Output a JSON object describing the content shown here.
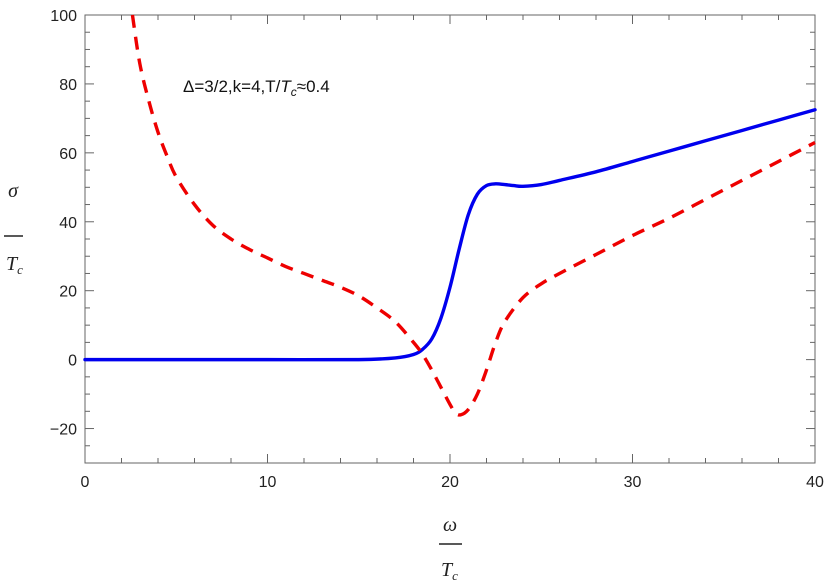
{
  "chart_data": {
    "type": "line",
    "title": "",
    "annotation": {
      "prefix": "Δ=3/2,k=4,T/",
      "sym": "T",
      "sub": "c",
      "suffix": "≈0.4"
    },
    "xlabel": {
      "top": "ω",
      "bottom_sym": "T",
      "bottom_sub": "c"
    },
    "ylabel": {
      "top": "σ",
      "bottom_sym": "T",
      "bottom_sub": "c"
    },
    "xlim": [
      0,
      40
    ],
    "ylim": [
      -30,
      100
    ],
    "xticks": [
      0,
      10,
      20,
      30,
      40
    ],
    "xtick_labels": [
      "0",
      "10",
      "20",
      "30",
      "40"
    ],
    "yticks": [
      -20,
      0,
      20,
      40,
      60,
      80,
      100
    ],
    "ytick_labels": [
      "−20",
      "0",
      "20",
      "40",
      "60",
      "80",
      "100"
    ],
    "grid": false,
    "series": [
      {
        "color": "#0000ee",
        "style": "solid",
        "x": [
          0,
          5,
          10,
          15,
          17,
          18,
          18.5,
          19,
          19.5,
          20,
          20.5,
          21,
          21.5,
          22,
          22.5,
          23,
          23.5,
          24,
          25,
          26,
          28,
          30,
          32,
          34,
          36,
          38,
          40
        ],
        "y": [
          0,
          0,
          0,
          0,
          0.5,
          1.5,
          3,
          6,
          12,
          21,
          32,
          42,
          48,
          50.5,
          51,
          50.8,
          50.5,
          50.3,
          50.8,
          52,
          54.5,
          57.5,
          60.5,
          63.5,
          66.5,
          69.5,
          72.5
        ]
      },
      {
        "color": "#ee0000",
        "style": "dashed",
        "x": [
          2.6,
          3,
          3.5,
          4,
          4.5,
          5,
          6,
          7,
          8,
          9,
          10,
          11,
          12,
          13,
          14,
          15,
          16,
          17,
          18,
          18.5,
          19,
          19.5,
          20,
          20.3,
          20.6,
          21,
          21.5,
          22,
          22.5,
          23,
          24,
          25,
          26,
          28,
          30,
          32,
          34,
          36,
          38,
          40
        ],
        "y": [
          100,
          86,
          75,
          66,
          59,
          53,
          45,
          39,
          35,
          32,
          29.5,
          27,
          25,
          23,
          21,
          18.5,
          15,
          11,
          5,
          1.5,
          -3,
          -8,
          -13,
          -15.5,
          -16,
          -14.5,
          -10,
          -3,
          5,
          11,
          18,
          22,
          25,
          30.5,
          36,
          41,
          46.5,
          52,
          57.5,
          63
        ]
      }
    ]
  }
}
